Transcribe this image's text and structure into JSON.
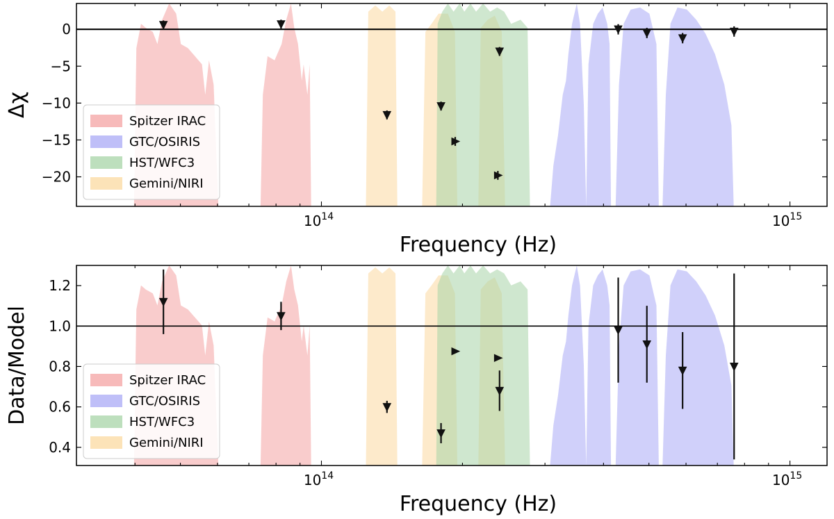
{
  "chart_data": [
    {
      "type": "scatter",
      "xscale": "log",
      "xlabel": "Frequency (Hz)",
      "ylabel": "Δχ",
      "xlim": [
        30000000000000.0,
        1200000000000000.0
      ],
      "ylim": [
        -24,
        3.5
      ],
      "reference_line": 0,
      "yticks": [
        0,
        -5,
        -10,
        -15,
        -20
      ],
      "ytick_labels": [
        "0",
        "−5",
        "−10",
        "−15",
        "−20"
      ],
      "xticks": [
        100000000000000.0,
        1000000000000000.0
      ],
      "legend": {
        "placement": "lower-left",
        "entries": [
          {
            "name": "Spitzer IRAC",
            "color": "#f4a3a3"
          },
          {
            "name": "GTC/OSIRIS",
            "color": "#a9a9f5"
          },
          {
            "name": "HST/WFC3",
            "color": "#a7d4a7"
          },
          {
            "name": "Gemini/NIRI",
            "color": "#fbd9a0"
          }
        ]
      },
      "points": [
        {
          "x": 46000000000000.0,
          "y": 0.6,
          "err": 0.6,
          "marker": "down"
        },
        {
          "x": 82000000000000.0,
          "y": 0.7,
          "err": 0.6,
          "marker": "down"
        },
        {
          "x": 138000000000000.0,
          "y": -11.6,
          "err": 0.6,
          "marker": "down"
        },
        {
          "x": 180000000000000.0,
          "y": -10.4,
          "err": 0.6,
          "marker": "down"
        },
        {
          "x": 193000000000000.0,
          "y": -15.2,
          "err": 0.6,
          "marker": "right"
        },
        {
          "x": 238000000000000.0,
          "y": -19.8,
          "err": 0.6,
          "marker": "right"
        },
        {
          "x": 240000000000000.0,
          "y": -3.0,
          "err": 0.6,
          "marker": "down"
        },
        {
          "x": 430000000000000.0,
          "y": 0.0,
          "err": 0.7,
          "marker": "down"
        },
        {
          "x": 495000000000000.0,
          "y": -0.5,
          "err": 0.7,
          "marker": "down"
        },
        {
          "x": 590000000000000.0,
          "y": -1.2,
          "err": 0.7,
          "marker": "down"
        },
        {
          "x": 760000000000000.0,
          "y": -0.3,
          "err": 0.7,
          "marker": "down"
        }
      ]
    },
    {
      "type": "scatter",
      "xscale": "log",
      "xlabel": "Frequency (Hz)",
      "ylabel": "Data/Model",
      "xlim": [
        30000000000000.0,
        1200000000000000.0
      ],
      "ylim": [
        0.31,
        1.3
      ],
      "reference_line": 1.0,
      "yticks": [
        0.4,
        0.6,
        0.8,
        1.0,
        1.2
      ],
      "ytick_labels": [
        "0.4",
        "0.6",
        "0.8",
        "1.0",
        "1.2"
      ],
      "xticks": [
        100000000000000.0,
        1000000000000000.0
      ],
      "legend": {
        "placement": "lower-left",
        "entries": [
          {
            "name": "Spitzer IRAC",
            "color": "#f4a3a3"
          },
          {
            "name": "GTC/OSIRIS",
            "color": "#a9a9f5"
          },
          {
            "name": "HST/WFC3",
            "color": "#a7d4a7"
          },
          {
            "name": "Gemini/NIRI",
            "color": "#fbd9a0"
          }
        ]
      },
      "points": [
        {
          "x": 46000000000000.0,
          "y": 1.12,
          "err": 0.16,
          "marker": "down"
        },
        {
          "x": 82000000000000.0,
          "y": 1.05,
          "err": 0.07,
          "marker": "down"
        },
        {
          "x": 138000000000000.0,
          "y": 0.6,
          "err": 0.03,
          "marker": "down"
        },
        {
          "x": 180000000000000.0,
          "y": 0.47,
          "err": 0.05,
          "marker": "down"
        },
        {
          "x": 193000000000000.0,
          "y": 0.875,
          "err": 0.0,
          "marker": "right"
        },
        {
          "x": 238000000000000.0,
          "y": 0.842,
          "err": 0.0,
          "marker": "right"
        },
        {
          "x": 240000000000000.0,
          "y": 0.68,
          "err": 0.1,
          "marker": "down"
        },
        {
          "x": 430000000000000.0,
          "y": 0.98,
          "err": 0.26,
          "marker": "down"
        },
        {
          "x": 495000000000000.0,
          "y": 0.91,
          "err": 0.19,
          "marker": "down"
        },
        {
          "x": 590000000000000.0,
          "y": 0.78,
          "err": 0.19,
          "marker": "down"
        },
        {
          "x": 760000000000000.0,
          "y": 0.8,
          "err": 0.46,
          "marker": "down"
        }
      ]
    }
  ]
}
